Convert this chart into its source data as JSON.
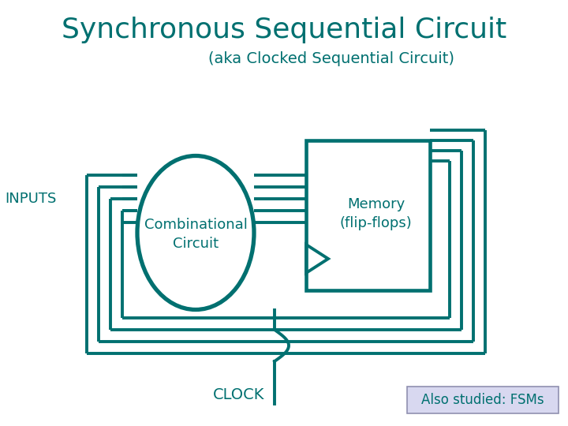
{
  "title": "Synchronous Sequential Circuit",
  "subtitle": "(aka Clocked Sequential Circuit)",
  "teal": "#007070",
  "inputs_label": "INPUTS",
  "comb_label1": "Combinational",
  "comb_label2": "Circuit",
  "memory_label1": "Memory",
  "memory_label2": "(flip-flops)",
  "clock_label": "CLOCK",
  "also_label": "Also studied: FSMs",
  "also_bg": "#d8d8f0",
  "also_border": "#9090b0",
  "bg_color": "#ffffff",
  "lw": 2.8,
  "title_fontsize": 26,
  "subtitle_fontsize": 14,
  "label_fontsize": 13
}
